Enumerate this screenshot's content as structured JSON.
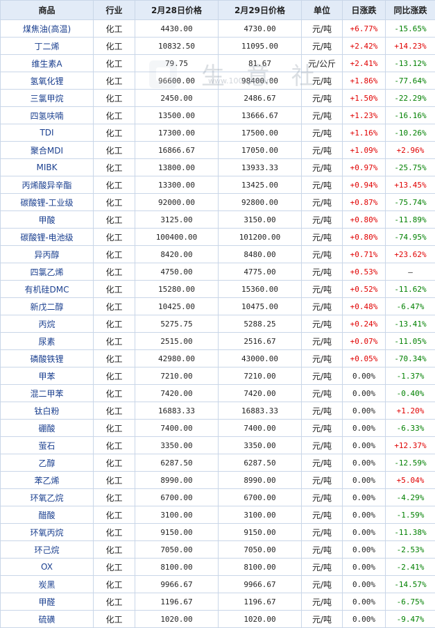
{
  "columns": [
    "商品",
    "行业",
    "2月28日价格",
    "2月29日价格",
    "单位",
    "日涨跌",
    "同比涨跌"
  ],
  "watermark": {
    "text": "生 意 社",
    "url": "www.100ppi.com"
  },
  "rows": [
    {
      "name": "煤焦油(高温)",
      "industry": "化工",
      "p1": "4430.00",
      "p2": "4730.00",
      "unit": "元/吨",
      "day": "+6.77%",
      "yoy": "-15.65%"
    },
    {
      "name": "丁二烯",
      "industry": "化工",
      "p1": "10832.50",
      "p2": "11095.00",
      "unit": "元/吨",
      "day": "+2.42%",
      "yoy": "+14.23%"
    },
    {
      "name": "维生素A",
      "industry": "化工",
      "p1": "79.75",
      "p2": "81.67",
      "unit": "元/公斤",
      "day": "+2.41%",
      "yoy": "-13.12%"
    },
    {
      "name": "氢氧化锂",
      "industry": "化工",
      "p1": "96600.00",
      "p2": "98400.00",
      "unit": "元/吨",
      "day": "+1.86%",
      "yoy": "-77.64%"
    },
    {
      "name": "三氯甲烷",
      "industry": "化工",
      "p1": "2450.00",
      "p2": "2486.67",
      "unit": "元/吨",
      "day": "+1.50%",
      "yoy": "-22.29%"
    },
    {
      "name": "四氢呋喃",
      "industry": "化工",
      "p1": "13500.00",
      "p2": "13666.67",
      "unit": "元/吨",
      "day": "+1.23%",
      "yoy": "-16.16%"
    },
    {
      "name": "TDI",
      "industry": "化工",
      "p1": "17300.00",
      "p2": "17500.00",
      "unit": "元/吨",
      "day": "+1.16%",
      "yoy": "-10.26%"
    },
    {
      "name": "聚合MDI",
      "industry": "化工",
      "p1": "16866.67",
      "p2": "17050.00",
      "unit": "元/吨",
      "day": "+1.09%",
      "yoy": "+2.96%"
    },
    {
      "name": "MIBK",
      "industry": "化工",
      "p1": "13800.00",
      "p2": "13933.33",
      "unit": "元/吨",
      "day": "+0.97%",
      "yoy": "-25.75%"
    },
    {
      "name": "丙烯酸异辛酯",
      "industry": "化工",
      "p1": "13300.00",
      "p2": "13425.00",
      "unit": "元/吨",
      "day": "+0.94%",
      "yoy": "+13.45%"
    },
    {
      "name": "碳酸锂-工业级",
      "industry": "化工",
      "p1": "92000.00",
      "p2": "92800.00",
      "unit": "元/吨",
      "day": "+0.87%",
      "yoy": "-75.74%"
    },
    {
      "name": "甲酸",
      "industry": "化工",
      "p1": "3125.00",
      "p2": "3150.00",
      "unit": "元/吨",
      "day": "+0.80%",
      "yoy": "-11.89%"
    },
    {
      "name": "碳酸锂-电池级",
      "industry": "化工",
      "p1": "100400.00",
      "p2": "101200.00",
      "unit": "元/吨",
      "day": "+0.80%",
      "yoy": "-74.95%"
    },
    {
      "name": "异丙醇",
      "industry": "化工",
      "p1": "8420.00",
      "p2": "8480.00",
      "unit": "元/吨",
      "day": "+0.71%",
      "yoy": "+23.62%"
    },
    {
      "name": "四氯乙烯",
      "industry": "化工",
      "p1": "4750.00",
      "p2": "4775.00",
      "unit": "元/吨",
      "day": "+0.53%",
      "yoy": "—"
    },
    {
      "name": "有机硅DMC",
      "industry": "化工",
      "p1": "15280.00",
      "p2": "15360.00",
      "unit": "元/吨",
      "day": "+0.52%",
      "yoy": "-11.62%"
    },
    {
      "name": "新戊二醇",
      "industry": "化工",
      "p1": "10425.00",
      "p2": "10475.00",
      "unit": "元/吨",
      "day": "+0.48%",
      "yoy": "-6.47%"
    },
    {
      "name": "丙烷",
      "industry": "化工",
      "p1": "5275.75",
      "p2": "5288.25",
      "unit": "元/吨",
      "day": "+0.24%",
      "yoy": "-13.41%"
    },
    {
      "name": "尿素",
      "industry": "化工",
      "p1": "2515.00",
      "p2": "2516.67",
      "unit": "元/吨",
      "day": "+0.07%",
      "yoy": "-11.05%"
    },
    {
      "name": "磷酸铁锂",
      "industry": "化工",
      "p1": "42980.00",
      "p2": "43000.00",
      "unit": "元/吨",
      "day": "+0.05%",
      "yoy": "-70.34%"
    },
    {
      "name": "甲苯",
      "industry": "化工",
      "p1": "7210.00",
      "p2": "7210.00",
      "unit": "元/吨",
      "day": "0.00%",
      "yoy": "-1.37%"
    },
    {
      "name": "混二甲苯",
      "industry": "化工",
      "p1": "7420.00",
      "p2": "7420.00",
      "unit": "元/吨",
      "day": "0.00%",
      "yoy": "-0.40%"
    },
    {
      "name": "钛白粉",
      "industry": "化工",
      "p1": "16883.33",
      "p2": "16883.33",
      "unit": "元/吨",
      "day": "0.00%",
      "yoy": "+1.20%"
    },
    {
      "name": "硼酸",
      "industry": "化工",
      "p1": "7400.00",
      "p2": "7400.00",
      "unit": "元/吨",
      "day": "0.00%",
      "yoy": "-6.33%"
    },
    {
      "name": "萤石",
      "industry": "化工",
      "p1": "3350.00",
      "p2": "3350.00",
      "unit": "元/吨",
      "day": "0.00%",
      "yoy": "+12.37%"
    },
    {
      "name": "乙醇",
      "industry": "化工",
      "p1": "6287.50",
      "p2": "6287.50",
      "unit": "元/吨",
      "day": "0.00%",
      "yoy": "-12.59%"
    },
    {
      "name": "苯乙烯",
      "industry": "化工",
      "p1": "8990.00",
      "p2": "8990.00",
      "unit": "元/吨",
      "day": "0.00%",
      "yoy": "+5.04%"
    },
    {
      "name": "环氧乙烷",
      "industry": "化工",
      "p1": "6700.00",
      "p2": "6700.00",
      "unit": "元/吨",
      "day": "0.00%",
      "yoy": "-4.29%"
    },
    {
      "name": "醋酸",
      "industry": "化工",
      "p1": "3100.00",
      "p2": "3100.00",
      "unit": "元/吨",
      "day": "0.00%",
      "yoy": "-1.59%"
    },
    {
      "name": "环氧丙烷",
      "industry": "化工",
      "p1": "9150.00",
      "p2": "9150.00",
      "unit": "元/吨",
      "day": "0.00%",
      "yoy": "-11.38%"
    },
    {
      "name": "环己烷",
      "industry": "化工",
      "p1": "7050.00",
      "p2": "7050.00",
      "unit": "元/吨",
      "day": "0.00%",
      "yoy": "-2.53%"
    },
    {
      "name": "OX",
      "industry": "化工",
      "p1": "8100.00",
      "p2": "8100.00",
      "unit": "元/吨",
      "day": "0.00%",
      "yoy": "-2.41%"
    },
    {
      "name": "炭黑",
      "industry": "化工",
      "p1": "9966.67",
      "p2": "9966.67",
      "unit": "元/吨",
      "day": "0.00%",
      "yoy": "-14.57%"
    },
    {
      "name": "甲醛",
      "industry": "化工",
      "p1": "1196.67",
      "p2": "1196.67",
      "unit": "元/吨",
      "day": "0.00%",
      "yoy": "-6.75%"
    },
    {
      "name": "硫磺",
      "industry": "化工",
      "p1": "1020.00",
      "p2": "1020.00",
      "unit": "元/吨",
      "day": "0.00%",
      "yoy": "-9.47%"
    }
  ]
}
